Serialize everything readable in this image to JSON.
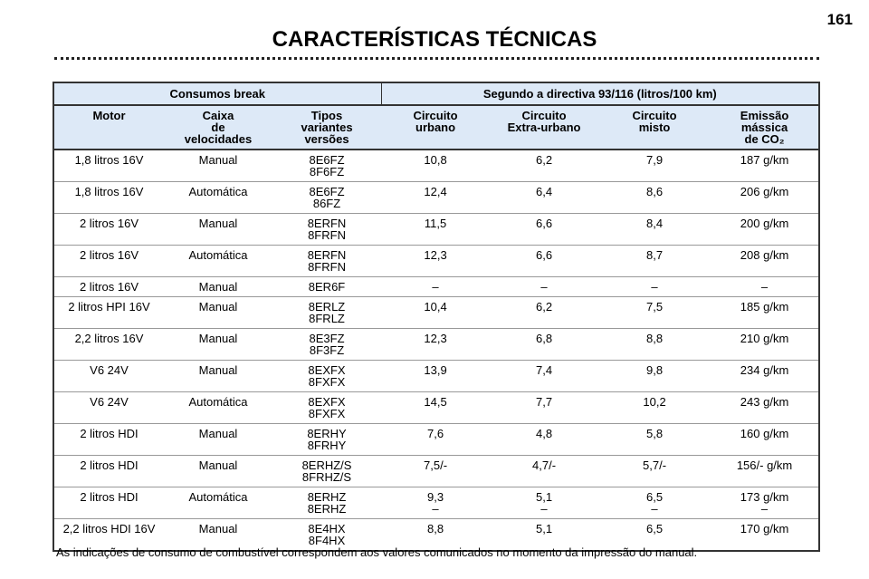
{
  "header": {
    "page_number": "161",
    "title": "CARACTERÍSTICAS TÉCNICAS"
  },
  "table": {
    "group_headers": [
      "Consumos break",
      "Segundo a directiva 93/116 (litros/100 km)"
    ],
    "columns": [
      [
        "Motor"
      ],
      [
        "Caixa",
        "de",
        "velocidades"
      ],
      [
        "Tipos",
        "variantes",
        "versões"
      ],
      [
        "Circuito",
        "urbano"
      ],
      [
        "Circuito",
        "Extra-urbano"
      ],
      [
        "Circuito",
        "misto"
      ],
      [
        "Emissão",
        "mássica",
        "de CO₂"
      ]
    ],
    "rows": [
      [
        [
          "1,8 litros 16V"
        ],
        [
          "Manual"
        ],
        [
          "8E6FZ",
          "8F6FZ"
        ],
        [
          "10,8"
        ],
        [
          "6,2"
        ],
        [
          "7,9"
        ],
        [
          "187 g/km"
        ]
      ],
      [
        [
          "1,8 litros 16V"
        ],
        [
          "Automática"
        ],
        [
          "8E6FZ",
          "86FZ"
        ],
        [
          "12,4"
        ],
        [
          "6,4"
        ],
        [
          "8,6"
        ],
        [
          "206 g/km"
        ]
      ],
      [
        [
          "2 litros 16V"
        ],
        [
          "Manual"
        ],
        [
          "8ERFN",
          "8FRFN"
        ],
        [
          "11,5"
        ],
        [
          "6,6"
        ],
        [
          "8,4"
        ],
        [
          "200 g/km"
        ]
      ],
      [
        [
          "2 litros 16V"
        ],
        [
          "Automática"
        ],
        [
          "8ERFN",
          "8FRFN"
        ],
        [
          "12,3"
        ],
        [
          "6,6"
        ],
        [
          "8,7"
        ],
        [
          "208 g/km"
        ]
      ],
      [
        [
          "2 litros 16V"
        ],
        [
          "Manual"
        ],
        [
          "8ER6F"
        ],
        [
          "–"
        ],
        [
          "–"
        ],
        [
          "–"
        ],
        [
          "–"
        ]
      ],
      [
        [
          "2 litros HPI 16V"
        ],
        [
          "Manual"
        ],
        [
          "8ERLZ",
          "8FRLZ"
        ],
        [
          "10,4"
        ],
        [
          "6,2"
        ],
        [
          "7,5"
        ],
        [
          "185 g/km"
        ]
      ],
      [
        [
          "2,2 litros 16V"
        ],
        [
          "Manual"
        ],
        [
          "8E3FZ",
          "8F3FZ"
        ],
        [
          "12,3"
        ],
        [
          "6,8"
        ],
        [
          "8,8"
        ],
        [
          "210 g/km"
        ]
      ],
      [
        [
          "V6 24V"
        ],
        [
          "Manual"
        ],
        [
          "8EXFX",
          "8FXFX"
        ],
        [
          "13,9"
        ],
        [
          "7,4"
        ],
        [
          "9,8"
        ],
        [
          "234 g/km"
        ]
      ],
      [
        [
          "V6 24V"
        ],
        [
          "Automática"
        ],
        [
          "8EXFX",
          "8FXFX"
        ],
        [
          "14,5"
        ],
        [
          "7,7"
        ],
        [
          "10,2"
        ],
        [
          "243 g/km"
        ]
      ],
      [
        [
          "2 litros HDI"
        ],
        [
          "Manual"
        ],
        [
          "8ERHY",
          "8FRHY"
        ],
        [
          "7,6"
        ],
        [
          "4,8"
        ],
        [
          "5,8"
        ],
        [
          "160 g/km"
        ]
      ],
      [
        [
          "2 litros HDI"
        ],
        [
          "Manual"
        ],
        [
          "8ERHZ/S",
          "8FRHZ/S"
        ],
        [
          "7,5/-"
        ],
        [
          "4,7/-"
        ],
        [
          "5,7/-"
        ],
        [
          "156/- g/km"
        ]
      ],
      [
        [
          "2 litros HDI"
        ],
        [
          "Automática"
        ],
        [
          "8ERHZ",
          "8ERHZ"
        ],
        [
          "9,3",
          "–"
        ],
        [
          "5,1",
          "–"
        ],
        [
          "6,5",
          "–"
        ],
        [
          "173 g/km",
          "–"
        ]
      ],
      [
        [
          "2,2 litros HDI 16V"
        ],
        [
          "Manual"
        ],
        [
          "8E4HX",
          "8F4HX"
        ],
        [
          "8,8"
        ],
        [
          "5,1"
        ],
        [
          "6,5"
        ],
        [
          "170 g/km"
        ]
      ]
    ]
  },
  "footer": {
    "note": "As indicações de consumo de combustível correspondem aos valores comunicados no momento da impressão do manual."
  }
}
